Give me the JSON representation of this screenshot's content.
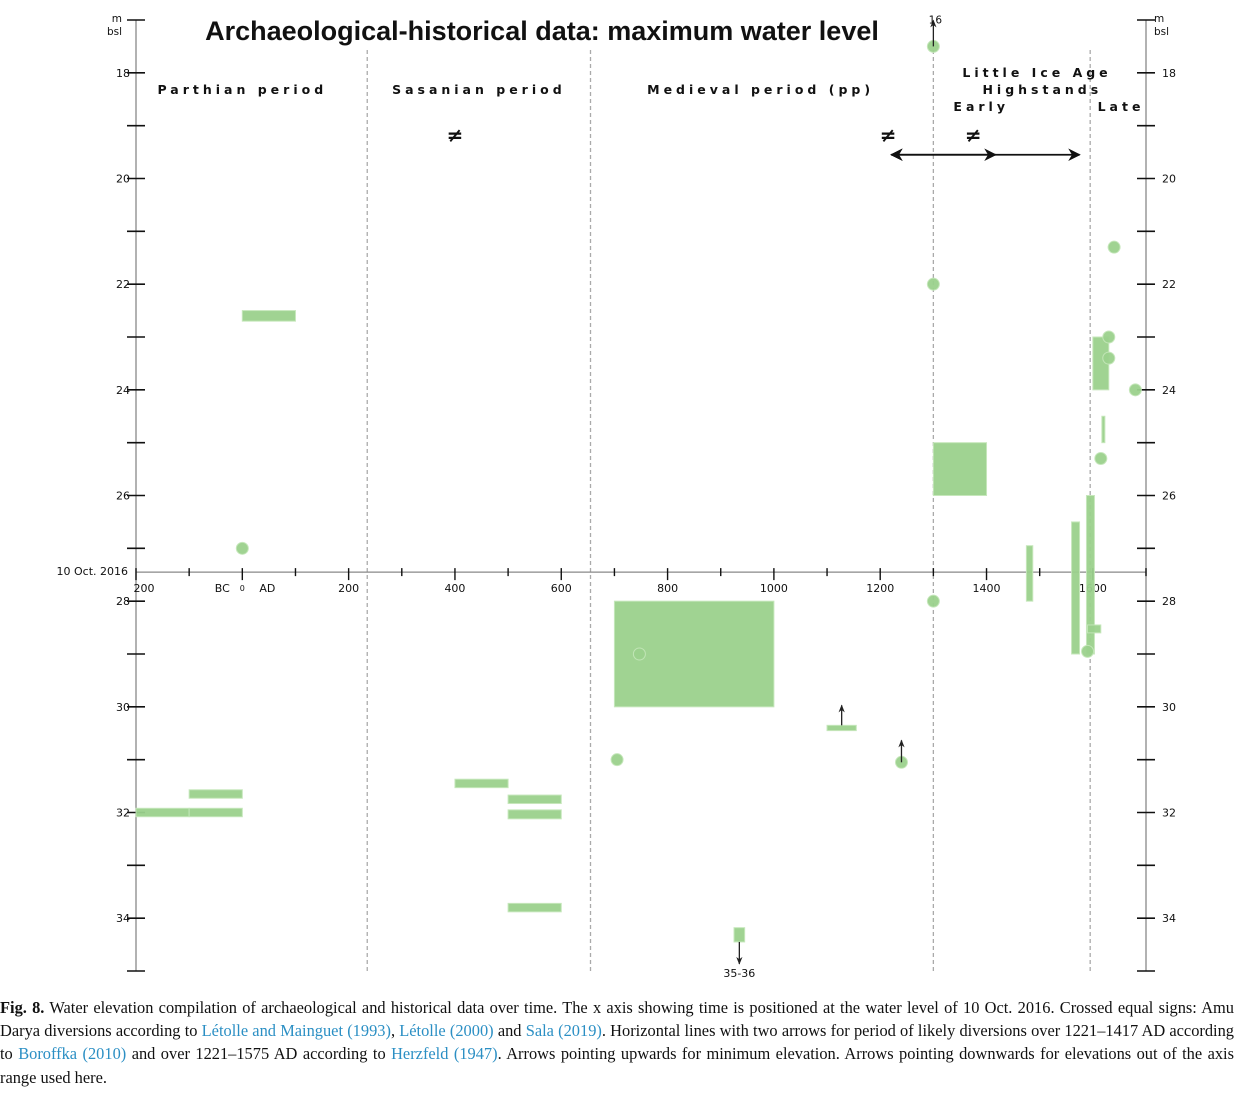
{
  "chart_data": {
    "type": "scatter",
    "title": "Archaeological-historical data: maximum water level",
    "ylabel": "m bsl",
    "ylabel_lines": [
      "m",
      "bsl"
    ],
    "xlabel": "",
    "x_axis_line_label": "10 Oct. 2016",
    "x_axis_level": 27.45,
    "ylim": [
      17,
      35
    ],
    "y_inverted": true,
    "xlim": [
      -200,
      1700
    ],
    "x_ticks": [
      -200,
      -100,
      0,
      100,
      200,
      300,
      400,
      500,
      600,
      700,
      800,
      900,
      1000,
      1100,
      1200,
      1300,
      1400,
      1500,
      1600,
      1700
    ],
    "x_tick_labels": [
      {
        "x": -200,
        "label": "200"
      },
      {
        "x": 200,
        "label": "200"
      },
      {
        "x": 400,
        "label": "400"
      },
      {
        "x": 600,
        "label": "600"
      },
      {
        "x": 800,
        "label": "800"
      },
      {
        "x": 1000,
        "label": "1000"
      },
      {
        "x": 1200,
        "label": "1200"
      },
      {
        "x": 1400,
        "label": "1400"
      },
      {
        "x": 1600,
        "label": "1600"
      }
    ],
    "era_labels": {
      "bc": "BC",
      "zero": "0",
      "ad": "AD"
    },
    "y_ticks": [
      17,
      18,
      19,
      20,
      21,
      22,
      23,
      24,
      25,
      26,
      27,
      28,
      29,
      30,
      31,
      32,
      33,
      34,
      35
    ],
    "y_tick_labels": [
      18,
      20,
      22,
      24,
      26,
      28,
      30,
      32,
      34
    ],
    "grid": false,
    "period_dividers": [
      235,
      655,
      1300,
      1595
    ],
    "periods": [
      {
        "label": "Parthian period",
        "x": 0
      },
      {
        "label": "Sasanian period",
        "x": 445
      },
      {
        "label": "Medieval period (pp)",
        "x": 975
      }
    ],
    "lia": {
      "title_line1": "Little Ice Age",
      "title_line2": "Highstands",
      "early": "Early",
      "late": "Late"
    },
    "diversion_marks": [
      {
        "x": 400,
        "y": 19.2,
        "symbol": "≠"
      },
      {
        "x": 1215,
        "y": 19.2,
        "symbol": "≠"
      },
      {
        "x": 1375,
        "y": 19.2,
        "symbol": "≠"
      }
    ],
    "diversion_periods": [
      {
        "from": 1221,
        "to": 1417,
        "y": 19.55
      },
      {
        "from": 1221,
        "to": 1575,
        "y": 19.55
      }
    ],
    "points": [
      {
        "x": 1300,
        "y": 17.5,
        "arrow": "up",
        "arrow_label": "16"
      },
      {
        "x": 0,
        "y": 27.0
      },
      {
        "x": 1300,
        "y": 22.0
      },
      {
        "x": 1300,
        "y": 28.0
      },
      {
        "x": 1640,
        "y": 21.3
      },
      {
        "x": 1630,
        "y": 23.0
      },
      {
        "x": 1630,
        "y": 23.4
      },
      {
        "x": 1680,
        "y": 24.0
      },
      {
        "x": 1615,
        "y": 25.3
      },
      {
        "x": 1590,
        "y": 28.95
      },
      {
        "x": 747,
        "y": 29.0
      },
      {
        "x": 705,
        "y": 31.0
      },
      {
        "x": 1240,
        "y": 31.05,
        "arrow": "up"
      }
    ],
    "ranges": [
      {
        "x0": 0,
        "x1": 100,
        "y0": 22.5,
        "y1": 22.7
      },
      {
        "x0": 1300,
        "x1": 1400,
        "y0": 25.0,
        "y1": 26.0
      },
      {
        "x0": 1600,
        "x1": 1630,
        "y0": 23.0,
        "y1": 24.0
      },
      {
        "x0": 1617,
        "x1": 1622,
        "y0": 24.5,
        "y1": 25.0
      },
      {
        "x0": 1475,
        "x1": 1487,
        "y0": 26.95,
        "y1": 28.0
      },
      {
        "x0": 1560,
        "x1": 1575,
        "y0": 26.5,
        "y1": 29.0
      },
      {
        "x0": 1588,
        "x1": 1603,
        "y0": 26.0,
        "y1": 29.0
      },
      {
        "x0": 1590,
        "x1": 1615,
        "y0": 28.45,
        "y1": 28.6
      },
      {
        "x0": 700,
        "x1": 1000,
        "y0": 28.0,
        "y1": 30.0
      },
      {
        "x0": 1100,
        "x1": 1155,
        "y0": 30.35,
        "y1": 30.45,
        "arrow": "up"
      },
      {
        "x0": -200,
        "x1": -100,
        "y0": 31.92,
        "y1": 32.08
      },
      {
        "x0": -100,
        "x1": 0,
        "y0": 31.57,
        "y1": 31.73
      },
      {
        "x0": -100,
        "x1": 0,
        "y0": 31.92,
        "y1": 32.08
      },
      {
        "x0": 400,
        "x1": 500,
        "y0": 31.37,
        "y1": 31.53
      },
      {
        "x0": 500,
        "x1": 600,
        "y0": 31.67,
        "y1": 31.83
      },
      {
        "x0": 500,
        "x1": 600,
        "y0": 31.95,
        "y1": 32.12
      },
      {
        "x0": 500,
        "x1": 600,
        "y0": 33.72,
        "y1": 33.88
      },
      {
        "x0": 925,
        "x1": 945,
        "y0": 34.18,
        "y1": 34.45,
        "arrow": "down",
        "arrow_label": "35-36"
      }
    ],
    "colors": {
      "fill": "#9bd18d",
      "edge": "#c3e6b8",
      "axis": "#888888",
      "divider": "#aaaaaa",
      "text": "#111111"
    }
  },
  "caption": {
    "fig_label": "Fig. 8.",
    "text_1": " Water elevation compilation of archaeological and historical data over time. The x axis showing time is positioned at the water level of 10 Oct. 2016. Crossed equal signs: Amu Darya diversions according to ",
    "ref_1": "Létolle and Mainguet (1993)",
    "text_2": ", ",
    "ref_2": "Létolle (2000)",
    "text_3": " and ",
    "ref_3": "Sala (2019)",
    "text_4": ". Horizontal lines with two arrows for period of likely diversions over 1221–1417 AD according to ",
    "ref_4": "Boroffka (2010)",
    "text_5": " and over 1221–1575 AD according to ",
    "ref_5": "Herzfeld (1947)",
    "text_6": ". Arrows pointing upwards for minimum elevation. Arrows pointing downwards for elevations out of the axis range used here.",
    "link_color": "#2b8fc4"
  }
}
